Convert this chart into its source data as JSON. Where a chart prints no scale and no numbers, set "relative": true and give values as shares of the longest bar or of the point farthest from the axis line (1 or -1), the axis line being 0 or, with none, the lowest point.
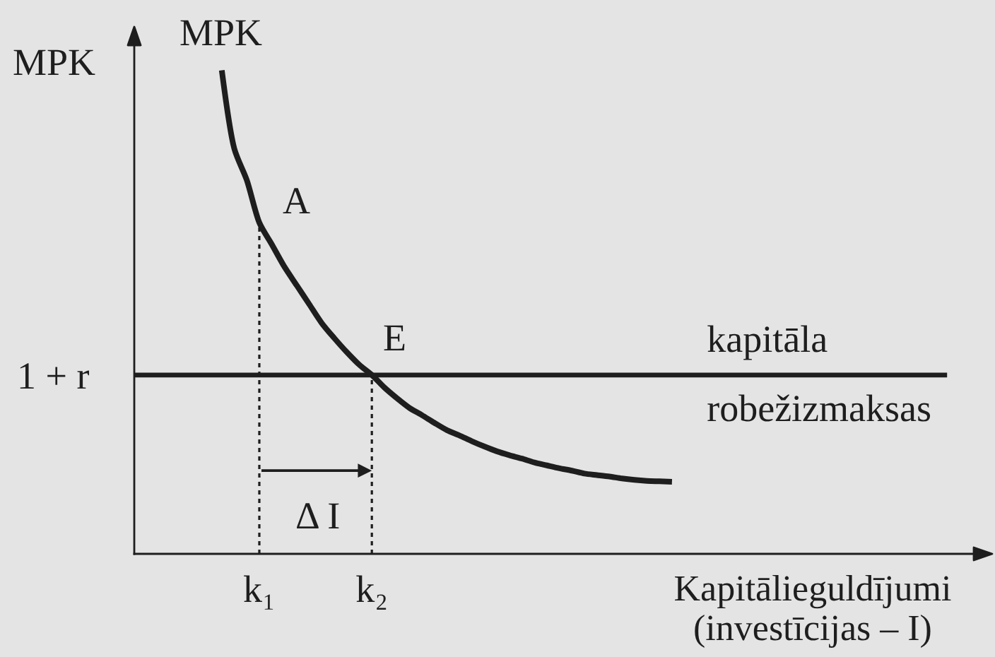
{
  "chart_data": {
    "type": "line",
    "relative": true,
    "ylabel": "MPK",
    "xlabel": "Kapitālieguldījumi (investīcijas – I)",
    "categories": [
      null,
      null,
      null,
      null,
      null,
      null,
      null,
      null,
      null,
      null,
      "k₁",
      null,
      null,
      null,
      null,
      null,
      null,
      null,
      null,
      "k₂",
      null,
      null,
      null,
      null,
      null,
      null,
      null,
      null,
      null,
      null,
      null,
      null,
      null,
      null,
      null,
      null,
      null,
      null,
      null,
      null,
      null,
      null,
      null,
      null,
      null,
      null,
      null,
      null,
      null,
      null,
      null,
      null,
      null,
      null,
      null,
      null,
      null,
      null,
      null,
      null,
      null,
      null,
      null,
      null,
      null,
      null
    ],
    "series": [
      {
        "name": "MPK",
        "color": "#1e1e1e",
        "values": [
          null,
          null,
          null,
          null,
          null,
          null,
          null,
          1.0,
          0.838,
          0.773,
          0.685,
          0.64,
          0.594,
          0.555,
          0.516,
          0.477,
          0.446,
          0.417,
          0.391,
          0.37,
          0.344,
          0.322,
          0.302,
          0.287,
          0.271,
          0.256,
          0.245,
          0.233,
          0.222,
          0.212,
          0.204,
          0.197,
          0.189,
          0.183,
          0.177,
          0.172,
          0.166,
          0.163,
          0.16,
          0.156,
          0.153,
          0.151,
          0.15,
          0.149,
          null,
          null,
          null,
          null,
          null,
          null,
          null,
          null,
          null,
          null,
          null,
          null,
          null,
          null,
          null,
          null,
          null,
          null,
          null,
          null,
          null,
          null
        ]
      },
      {
        "name": "kapitāla robežizmaksas",
        "color": "#1e1e1e",
        "values": [
          0.37,
          0.37,
          0.37,
          0.37,
          0.37,
          0.37,
          0.37,
          0.37,
          0.37,
          0.37,
          0.37,
          0.37,
          0.37,
          0.37,
          0.37,
          0.37,
          0.37,
          0.37,
          0.37,
          0.37,
          0.37,
          0.37,
          0.37,
          0.37,
          0.37,
          0.37,
          0.37,
          0.37,
          0.37,
          0.37,
          0.37,
          0.37,
          0.37,
          0.37,
          0.37,
          0.37,
          0.37,
          0.37,
          0.37,
          0.37,
          0.37,
          0.37,
          0.37,
          0.37,
          0.37,
          0.37,
          0.37,
          0.37,
          0.37,
          0.37,
          0.37,
          0.37,
          0.37,
          0.37,
          0.37,
          0.37,
          0.37,
          0.37,
          0.37,
          0.37,
          0.37,
          0.37,
          0.37,
          0.37,
          0.37,
          0.37
        ]
      },
      {
        "color": "#1e1e1e",
        "x": [
          "k₁",
          "k₁"
        ],
        "values": [
          0,
          0.68
        ],
        "line_style": "dotted"
      },
      {
        "color": "#1e1e1e",
        "x": [
          "k₂",
          "k₂"
        ],
        "values": [
          0,
          0.37
        ],
        "line_style": "dotted"
      }
    ],
    "annotations": [
      {
        "text": "A",
        "x": "k₁",
        "y": 0.68
      },
      {
        "text": "E",
        "x": "k₂",
        "y": 0.37
      },
      "1 + r",
      "Δ I"
    ]
  }
}
